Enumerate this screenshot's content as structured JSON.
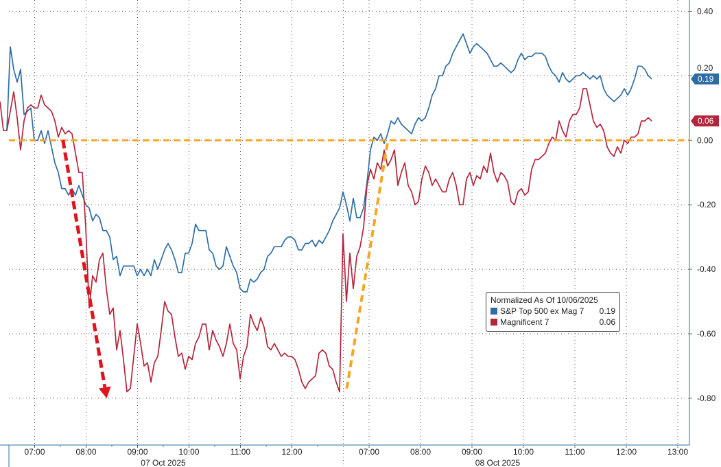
{
  "chart_data": {
    "type": "line",
    "title": "",
    "xlabel": "",
    "ylabel": "",
    "x_unit": "minutes since 06:30 on 07 Oct 2025 (trading-session axis, sessions 06:30-13:00 joined)",
    "ylim": [
      -0.945,
      0.435
    ],
    "xlim": [
      -10.4,
      836
    ],
    "grid": true,
    "y_ticks": [
      {
        "value": 0.4,
        "label": "0.40"
      },
      {
        "value": 0.2,
        "label": "0.20"
      },
      {
        "value": 0.0,
        "label": "0.00"
      },
      {
        "value": -0.2,
        "label": "-0.20"
      },
      {
        "value": -0.4,
        "label": "-0.40"
      },
      {
        "value": -0.6,
        "label": "-0.60"
      },
      {
        "value": -0.8,
        "label": "-0.80"
      }
    ],
    "x_ticks": [
      {
        "minute": 30,
        "label": "07:00"
      },
      {
        "minute": 90,
        "label": "08:00"
      },
      {
        "minute": 150,
        "label": "09:00"
      },
      {
        "minute": 210,
        "label": "10:00"
      },
      {
        "minute": 270,
        "label": "11:00"
      },
      {
        "minute": 330,
        "label": "12:00"
      },
      {
        "minute": 420,
        "label": "07:00"
      },
      {
        "minute": 480,
        "label": "08:00"
      },
      {
        "minute": 540,
        "label": "09:00"
      },
      {
        "minute": 600,
        "label": "10:00"
      },
      {
        "minute": 660,
        "label": "11:00"
      },
      {
        "minute": 720,
        "label": "12:00"
      },
      {
        "minute": 780,
        "label": "13:00"
      }
    ],
    "day_boundaries": [
      0,
      390
    ],
    "day_labels": [
      {
        "minute": 180,
        "label": "07 Oct 2025"
      },
      {
        "minute": 570,
        "label": "08 Oct 2025"
      }
    ],
    "legend": {
      "title": "Normalized As Of 10/06/2025",
      "placement": "bottom-right"
    },
    "series": [
      {
        "name": "S&P Top 500 ex Mag 7",
        "last_label": "0.19",
        "color": "#2e6da4",
        "start_minute": -2.4,
        "step_minutes": 4,
        "values": [
          0.03,
          0.29,
          0.22,
          0.18,
          0.22,
          0.08,
          0.09,
          0.1,
          0.0,
          0.0,
          0.03,
          -0.01,
          0.03,
          -0.02,
          -0.07,
          -0.1,
          -0.15,
          -0.15,
          -0.17,
          -0.15,
          -0.17,
          -0.14,
          -0.17,
          -0.2,
          -0.21,
          -0.25,
          -0.23,
          -0.24,
          -0.28,
          -0.28,
          -0.3,
          -0.37,
          -0.36,
          -0.42,
          -0.39,
          -0.39,
          -0.39,
          -0.39,
          -0.42,
          -0.4,
          -0.42,
          -0.4,
          -0.42,
          -0.37,
          -0.4,
          -0.37,
          -0.34,
          -0.32,
          -0.34,
          -0.37,
          -0.41,
          -0.41,
          -0.35,
          -0.35,
          -0.32,
          -0.26,
          -0.28,
          -0.28,
          -0.28,
          -0.34,
          -0.35,
          -0.39,
          -0.4,
          -0.39,
          -0.33,
          -0.36,
          -0.39,
          -0.41,
          -0.46,
          -0.47,
          -0.47,
          -0.43,
          -0.44,
          -0.43,
          -0.41,
          -0.4,
          -0.36,
          -0.35,
          -0.33,
          -0.33,
          -0.33,
          -0.31,
          -0.3,
          -0.3,
          -0.31,
          -0.34,
          -0.34,
          -0.32,
          -0.32,
          -0.31,
          -0.33,
          -0.31,
          -0.32,
          -0.3,
          -0.28,
          -0.25,
          -0.23,
          -0.21,
          -0.16,
          -0.2,
          -0.25,
          -0.18,
          -0.24,
          -0.24,
          -0.21,
          -0.13,
          -0.03,
          0.01,
          0.0,
          0.02,
          -0.01,
          0.02,
          0.06,
          0.05,
          0.07,
          0.05,
          0.04,
          0.03,
          0.02,
          0.05,
          0.07,
          0.06,
          0.07,
          0.1,
          0.14,
          0.16,
          0.2,
          0.2,
          0.23,
          0.24,
          0.27,
          0.29,
          0.31,
          0.33,
          0.3,
          0.27,
          0.29,
          0.3,
          0.29,
          0.28,
          0.27,
          0.25,
          0.23,
          0.23,
          0.24,
          0.23,
          0.22,
          0.21,
          0.22,
          0.25,
          0.27,
          0.25,
          0.26,
          0.26,
          0.27,
          0.27,
          0.27,
          0.26,
          0.23,
          0.21,
          0.2,
          0.18,
          0.21,
          0.19,
          0.18,
          0.19,
          0.2,
          0.2,
          0.21,
          0.2,
          0.19,
          0.2,
          0.19,
          0.2,
          0.16,
          0.14,
          0.13,
          0.12,
          0.13,
          0.14,
          0.16,
          0.14,
          0.16,
          0.19,
          0.23,
          0.23,
          0.22,
          0.2,
          0.19
        ]
      },
      {
        "name": "Magnificent 7",
        "last_label": "0.06",
        "color": "#b5253a",
        "start_minute": -10.4,
        "step_minutes": 4,
        "values": [
          0.12,
          0.03,
          0.03,
          0.09,
          0.15,
          0.07,
          -0.03,
          0.06,
          0.1,
          0.11,
          0.1,
          0.1,
          0.14,
          0.11,
          0.1,
          0.09,
          0.06,
          0.01,
          0.04,
          0.02,
          0.03,
          0.02,
          -0.04,
          -0.1,
          -0.1,
          -0.27,
          -0.52,
          -0.42,
          -0.44,
          -0.37,
          -0.35,
          -0.46,
          -0.54,
          -0.52,
          -0.65,
          -0.59,
          -0.68,
          -0.78,
          -0.77,
          -0.67,
          -0.57,
          -0.63,
          -0.7,
          -0.69,
          -0.75,
          -0.69,
          -0.67,
          -0.59,
          -0.5,
          -0.53,
          -0.54,
          -0.61,
          -0.67,
          -0.66,
          -0.71,
          -0.67,
          -0.68,
          -0.63,
          -0.61,
          -0.57,
          -0.57,
          -0.65,
          -0.59,
          -0.62,
          -0.64,
          -0.67,
          -0.63,
          -0.57,
          -0.63,
          -0.65,
          -0.74,
          -0.67,
          -0.64,
          -0.54,
          -0.57,
          -0.59,
          -0.55,
          -0.58,
          -0.64,
          -0.65,
          -0.63,
          -0.65,
          -0.67,
          -0.66,
          -0.67,
          -0.67,
          -0.68,
          -0.71,
          -0.75,
          -0.77,
          -0.75,
          -0.74,
          -0.73,
          -0.66,
          -0.65,
          -0.66,
          -0.7,
          -0.71,
          -0.75,
          -0.78,
          -0.29,
          -0.5,
          -0.35,
          -0.46,
          -0.36,
          -0.33,
          -0.27,
          -0.14,
          -0.09,
          -0.12,
          -0.07,
          -0.09,
          -0.03,
          -0.08,
          -0.06,
          -0.03,
          -0.14,
          -0.1,
          -0.07,
          -0.14,
          -0.16,
          -0.2,
          -0.19,
          -0.12,
          -0.08,
          -0.1,
          -0.14,
          -0.12,
          -0.14,
          -0.16,
          -0.16,
          -0.12,
          -0.1,
          -0.14,
          -0.2,
          -0.2,
          -0.12,
          -0.1,
          -0.14,
          -0.11,
          -0.12,
          -0.08,
          -0.1,
          -0.04,
          -0.1,
          -0.13,
          -0.1,
          -0.11,
          -0.13,
          -0.19,
          -0.2,
          -0.16,
          -0.15,
          -0.17,
          -0.16,
          -0.09,
          -0.06,
          -0.06,
          -0.05,
          -0.04,
          -0.01,
          0.01,
          0.0,
          0.06,
          0.03,
          0.01,
          0.06,
          0.08,
          0.08,
          0.1,
          0.16,
          0.16,
          0.11,
          0.06,
          0.04,
          0.05,
          0.03,
          -0.02,
          -0.04,
          -0.05,
          -0.02,
          -0.04,
          0.0,
          -0.01,
          0.01,
          0.01,
          0.02,
          0.06,
          0.06,
          0.07,
          0.06
        ]
      }
    ],
    "annotations": [
      {
        "type": "hline",
        "value": 0.0,
        "color": "#f5a623",
        "style": "dashed"
      },
      {
        "type": "arrow",
        "from": [
          63,
          0.0
        ],
        "to": [
          114,
          -0.8
        ],
        "color": "#e0141e",
        "style": "dashed"
      },
      {
        "type": "line",
        "from": [
          394,
          -0.77
        ],
        "to": [
          442,
          0.0
        ],
        "color": "#f5a623",
        "style": "dashed"
      }
    ]
  }
}
